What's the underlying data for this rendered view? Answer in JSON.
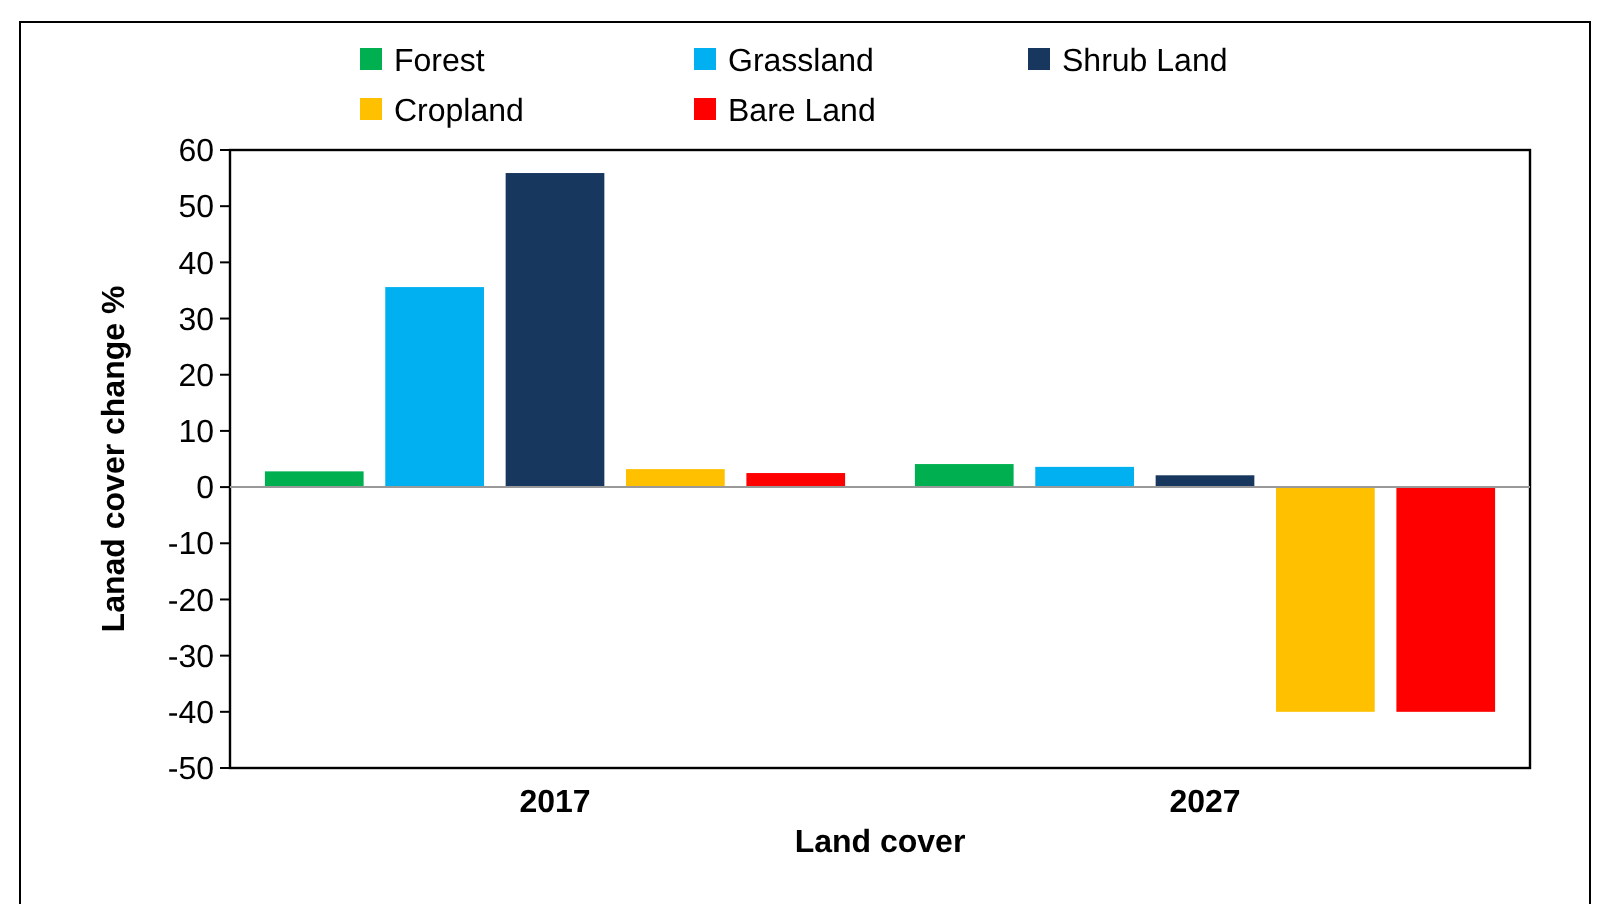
{
  "chart_data": {
    "type": "bar",
    "xlabel": "Land cover",
    "ylabel": "Lanad cover change %",
    "categories": [
      "2017",
      "2027"
    ],
    "series": [
      {
        "name": "Forest",
        "color": "#00b050",
        "values": [
          2.8,
          4.1
        ]
      },
      {
        "name": "Grassland",
        "color": "#00b0f0",
        "values": [
          35.6,
          3.6
        ]
      },
      {
        "name": "Shrub Land",
        "color": "#17375e",
        "values": [
          55.9,
          2.1
        ]
      },
      {
        "name": "Cropland",
        "color": "#ffc000",
        "values": [
          3.2,
          -40
        ]
      },
      {
        "name": "Bare Land",
        "color": "#ff0000",
        "values": [
          2.5,
          -40
        ]
      }
    ],
    "ylim": [
      -50,
      60
    ],
    "yticks": [
      -50,
      -40,
      -30,
      -20,
      -10,
      0,
      10,
      20,
      30,
      40,
      50,
      60
    ],
    "legend": "top"
  }
}
